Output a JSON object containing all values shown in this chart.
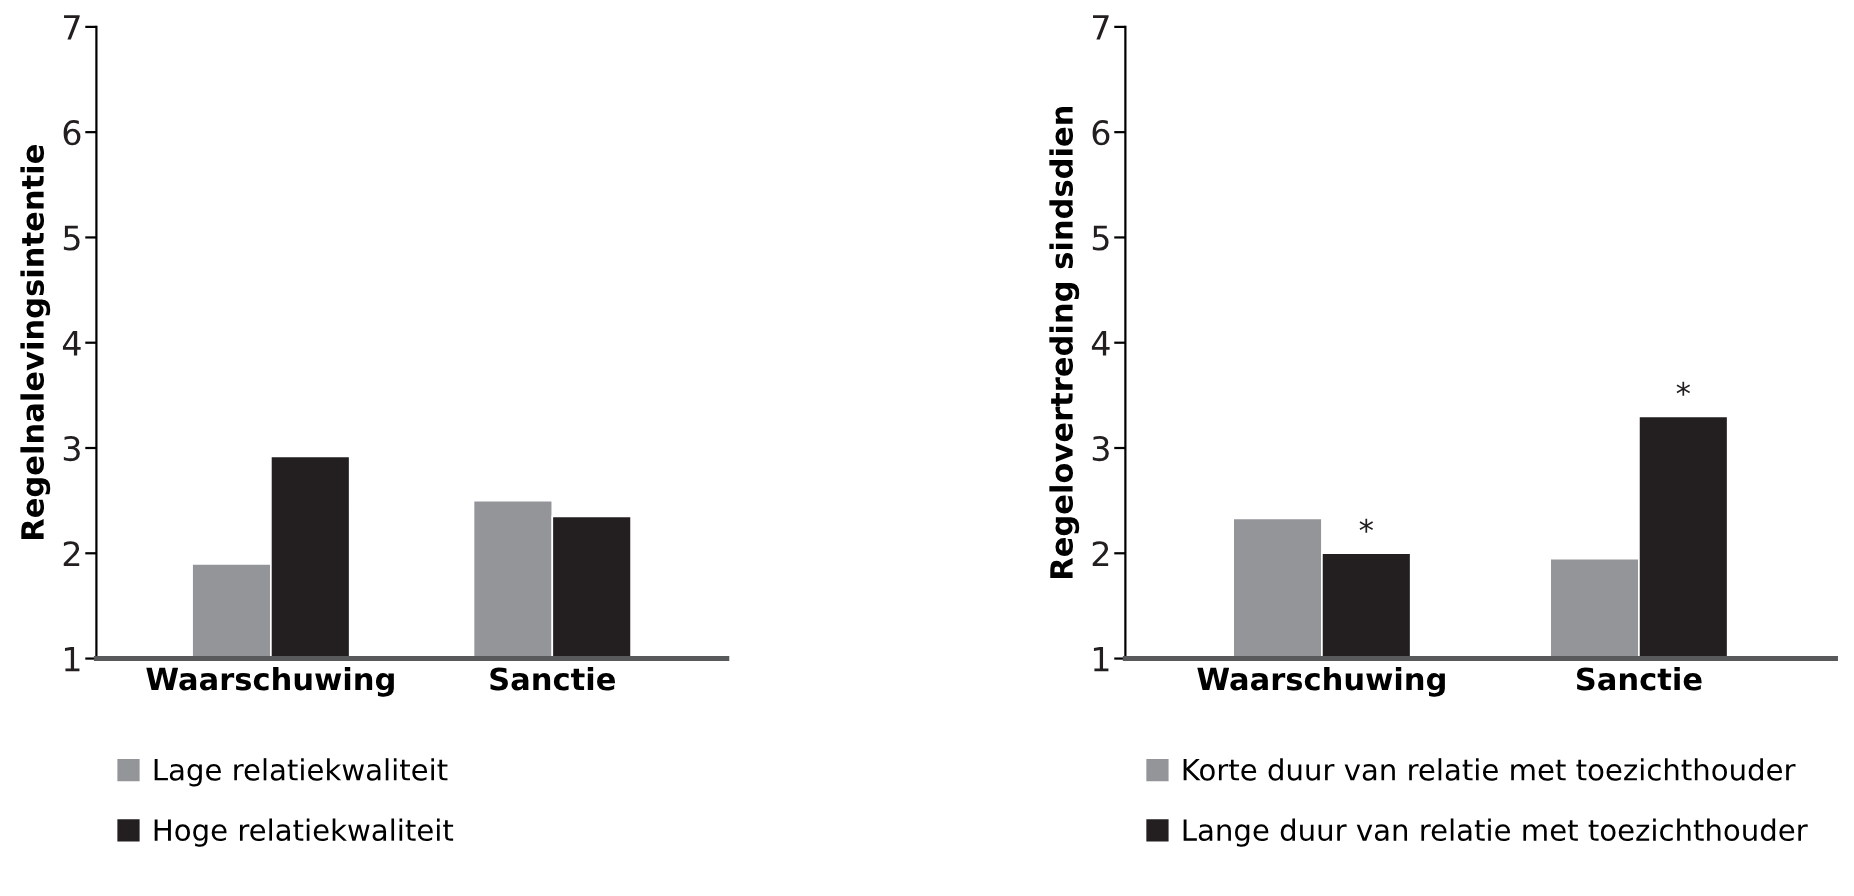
{
  "chart_data": [
    {
      "type": "bar",
      "ylabel": "Regelnalevingsintentie",
      "categories": [
        "Waarschuwing",
        "Sanctie"
      ],
      "series": [
        {
          "name": "Lage relatiekwaliteit",
          "color": "#939598",
          "values": [
            1.9,
            2.5
          ]
        },
        {
          "name": "Hoge relatiekwaliteit",
          "color": "#231f20",
          "values": [
            2.92,
            2.35
          ]
        }
      ],
      "ylim": [
        1,
        7
      ],
      "yticks": [
        1,
        2,
        3,
        4,
        5,
        6,
        7
      ],
      "grid": false,
      "legend": "bottom left"
    },
    {
      "type": "bar",
      "ylabel": "Regelovertreding sindsdien",
      "categories": [
        "Waarschuwing",
        "Sanctie"
      ],
      "series": [
        {
          "name": "Korte duur van relatie met toezichthouder",
          "color": "#939598",
          "values": [
            2.33,
            1.95
          ]
        },
        {
          "name": "Lange duur van relatie met toezichthouder",
          "color": "#231f20",
          "values": [
            2.0,
            3.3
          ]
        }
      ],
      "ylim": [
        1,
        7
      ],
      "yticks": [
        1,
        2,
        3,
        4,
        5,
        6,
        7
      ],
      "grid": false,
      "legend": "bottom left",
      "annotations": [
        {
          "text": "*",
          "x": "Waarschuwing",
          "y": 2.0
        },
        {
          "text": "*",
          "x": "Sanctie",
          "y": 3.3
        }
      ]
    }
  ]
}
